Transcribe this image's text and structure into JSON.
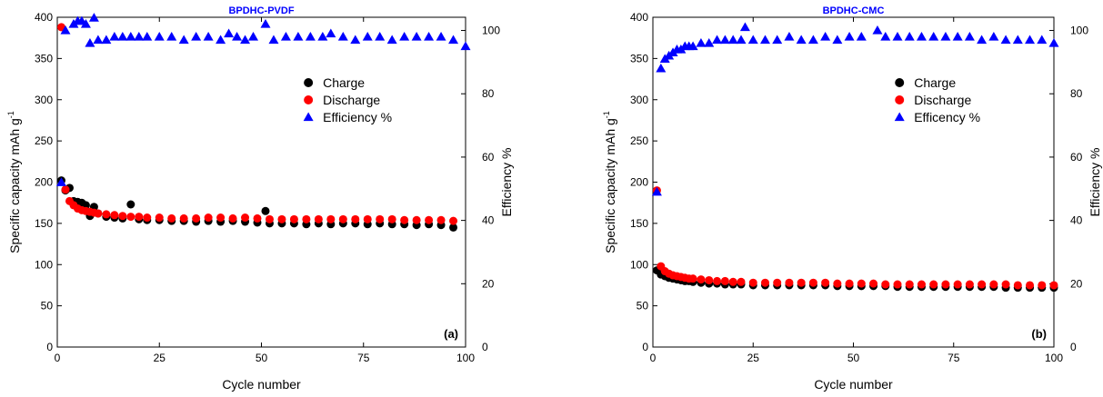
{
  "colors": {
    "charge": "#000000",
    "discharge": "#ff0000",
    "efficiency": "#0000ff",
    "title": "#0000ff"
  },
  "chart_data": [
    {
      "type": "scatter",
      "title": "BPDHC-PVDF",
      "panel_label": "(a)",
      "xlabel": "Cycle number",
      "ylabel": "Specific capacity mAh g",
      "ylabel_sup": "-1",
      "y2label": "Efficiency %",
      "xlim": [
        0,
        100
      ],
      "ylim": [
        0,
        400
      ],
      "y2lim": [
        0,
        104.17
      ],
      "xticks": [
        "0",
        "25",
        "50",
        "75",
        "100"
      ],
      "yticks": [
        "0",
        "50",
        "100",
        "150",
        "200",
        "250",
        "300",
        "350",
        "400"
      ],
      "y2ticks": [
        "0",
        "20",
        "40",
        "60",
        "80",
        "100"
      ],
      "legend_position": "upper-right",
      "legend": [
        "Charge",
        "Discharge",
        "Efficiency %"
      ],
      "series": [
        {
          "name": "Charge",
          "axis": "left",
          "marker": "circle",
          "x": [
            1,
            2,
            3,
            4,
            5,
            6,
            7,
            8,
            9,
            10,
            12,
            14,
            16,
            18,
            20,
            22,
            25,
            28,
            31,
            34,
            37,
            40,
            43,
            46,
            49,
            51,
            52,
            55,
            58,
            61,
            64,
            67,
            70,
            73,
            76,
            79,
            82,
            85,
            88,
            91,
            94,
            97
          ],
          "y": [
            202,
            190,
            193,
            177,
            176,
            175,
            172,
            159,
            170,
            162,
            158,
            157,
            156,
            173,
            155,
            154,
            154,
            153,
            153,
            152,
            153,
            152,
            153,
            152,
            151,
            165,
            150,
            150,
            150,
            149,
            150,
            149,
            150,
            150,
            149,
            150,
            149,
            149,
            148,
            149,
            148,
            145
          ]
        },
        {
          "name": "Discharge",
          "axis": "left",
          "marker": "circle",
          "x": [
            1,
            2,
            3,
            4,
            5,
            6,
            7,
            8,
            9,
            10,
            12,
            14,
            16,
            18,
            20,
            22,
            25,
            28,
            31,
            34,
            37,
            40,
            43,
            46,
            49,
            52,
            55,
            58,
            61,
            64,
            67,
            70,
            73,
            76,
            79,
            82,
            85,
            88,
            91,
            94,
            97
          ],
          "y": [
            388,
            191,
            177,
            172,
            168,
            166,
            165,
            164,
            163,
            162,
            161,
            160,
            159,
            158,
            158,
            157,
            157,
            156,
            156,
            156,
            157,
            157,
            156,
            157,
            156,
            155,
            155,
            155,
            155,
            155,
            155,
            155,
            155,
            155,
            155,
            155,
            154,
            154,
            154,
            154,
            153
          ]
        },
        {
          "name": "Efficiency %",
          "axis": "right",
          "marker": "triangle",
          "x": [
            1,
            2,
            4,
            5,
            6,
            7,
            8,
            9,
            10,
            12,
            14,
            16,
            18,
            20,
            22,
            25,
            28,
            31,
            34,
            37,
            40,
            42,
            44,
            46,
            48,
            51,
            53,
            56,
            59,
            62,
            65,
            67,
            70,
            73,
            76,
            79,
            82,
            85,
            88,
            91,
            94,
            97,
            100
          ],
          "y": [
            52,
            100,
            102,
            103,
            103,
            102,
            96,
            104,
            97,
            97,
            98,
            98,
            98,
            98,
            98,
            98,
            98,
            97,
            98,
            98,
            97,
            99,
            98,
            97,
            98,
            102,
            97,
            98,
            98,
            98,
            98,
            99,
            98,
            97,
            98,
            98,
            97,
            98,
            98,
            98,
            98,
            97,
            95
          ]
        }
      ]
    },
    {
      "type": "scatter",
      "title": "BPDHC-CMC",
      "panel_label": "(b)",
      "xlabel": "Cycle number",
      "ylabel": "Specific capacity mAh g",
      "ylabel_sup": "-1",
      "y2label": "Efficiency %",
      "xlim": [
        0,
        100
      ],
      "ylim": [
        0,
        400
      ],
      "y2lim": [
        0,
        104.17
      ],
      "xticks": [
        "0",
        "25",
        "50",
        "75",
        "100"
      ],
      "yticks": [
        "0",
        "50",
        "100",
        "150",
        "200",
        "250",
        "300",
        "350",
        "400"
      ],
      "y2ticks": [
        "0",
        "20",
        "40",
        "60",
        "80",
        "100"
      ],
      "legend_position": "upper-right",
      "legend": [
        "Charge",
        "Discharge",
        "Efficency %"
      ],
      "series": [
        {
          "name": "Charge",
          "axis": "left",
          "marker": "circle",
          "x": [
            1,
            2,
            3,
            4,
            5,
            6,
            7,
            8,
            9,
            10,
            12,
            14,
            16,
            18,
            20,
            22,
            25,
            28,
            31,
            34,
            37,
            40,
            43,
            46,
            49,
            52,
            55,
            58,
            61,
            64,
            67,
            70,
            73,
            76,
            79,
            82,
            85,
            88,
            91,
            94,
            97,
            100
          ],
          "y": [
            93,
            88,
            86,
            84,
            83,
            82,
            81,
            80,
            80,
            79,
            78,
            77,
            77,
            76,
            76,
            76,
            75,
            75,
            75,
            75,
            75,
            75,
            75,
            74,
            74,
            74,
            74,
            74,
            73,
            73,
            73,
            73,
            73,
            73,
            73,
            73,
            73,
            72,
            72,
            72,
            72,
            72
          ]
        },
        {
          "name": "Discharge",
          "axis": "left",
          "marker": "circle",
          "x": [
            1,
            2,
            3,
            4,
            5,
            6,
            7,
            8,
            9,
            10,
            12,
            14,
            16,
            18,
            20,
            22,
            25,
            28,
            31,
            34,
            37,
            40,
            43,
            46,
            49,
            52,
            55,
            58,
            61,
            64,
            67,
            70,
            73,
            76,
            79,
            82,
            85,
            88,
            91,
            94,
            97,
            100
          ],
          "y": [
            190,
            98,
            92,
            89,
            87,
            86,
            85,
            84,
            83,
            83,
            82,
            81,
            80,
            80,
            79,
            79,
            78,
            78,
            78,
            78,
            78,
            78,
            78,
            77,
            77,
            77,
            77,
            76,
            76,
            76,
            76,
            76,
            76,
            76,
            76,
            76,
            76,
            76,
            75,
            75,
            75,
            75
          ]
        },
        {
          "name": "Efficency %",
          "axis": "right",
          "marker": "triangle",
          "x": [
            1,
            2,
            3,
            4,
            5,
            6,
            7,
            8,
            9,
            10,
            12,
            14,
            16,
            18,
            20,
            22,
            23,
            25,
            28,
            31,
            34,
            37,
            40,
            43,
            46,
            49,
            52,
            56,
            58,
            61,
            64,
            67,
            70,
            73,
            76,
            79,
            82,
            85,
            88,
            91,
            94,
            97,
            100
          ],
          "y": [
            49,
            88,
            91,
            92,
            93,
            94,
            94,
            95,
            95,
            95,
            96,
            96,
            97,
            97,
            97,
            97,
            101,
            97,
            97,
            97,
            98,
            97,
            97,
            98,
            97,
            98,
            98,
            100,
            98,
            98,
            98,
            98,
            98,
            98,
            98,
            98,
            97,
            98,
            97,
            97,
            97,
            97,
            96
          ]
        }
      ]
    }
  ]
}
